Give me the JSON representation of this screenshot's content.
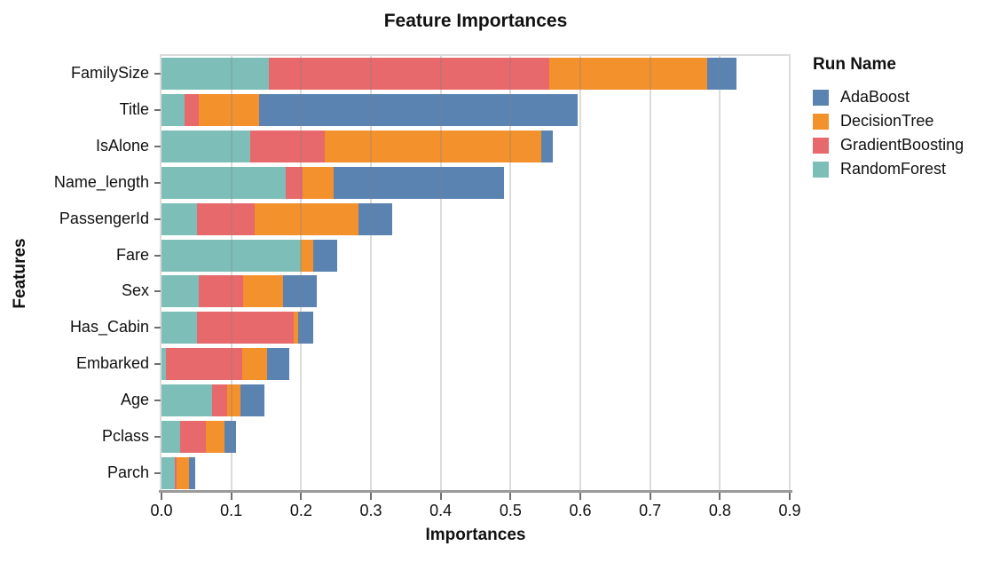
{
  "title": "Feature Importances",
  "axes": {
    "x_label": "Importances",
    "y_label": "Features",
    "x_tick_labels": [
      "0.0",
      "0.1",
      "0.2",
      "0.3",
      "0.4",
      "0.5",
      "0.6",
      "0.7",
      "0.8",
      "0.9"
    ]
  },
  "legend": {
    "title": "Run Name",
    "entries": [
      {
        "label": "AdaBoost",
        "color": "#5b83b2"
      },
      {
        "label": "DecisionTree",
        "color": "#f3912d"
      },
      {
        "label": "GradientBoosting",
        "color": "#e8696b"
      },
      {
        "label": "RandomForest",
        "color": "#7dbfb8"
      }
    ]
  },
  "colors": {
    "adaboost": "#5b83b2",
    "decision_tree": "#f3912d",
    "gradient_boosting": "#e8696b",
    "random_forest": "#7dbfb8",
    "gridline": "#dcdcdc",
    "axis_line": "#9a9a9a"
  },
  "chart_data": {
    "type": "bar",
    "orientation": "horizontal",
    "stacked": true,
    "title": "Feature Importances",
    "xlabel": "Importances",
    "ylabel": "Features",
    "xlim": [
      0,
      0.9
    ],
    "x_ticks": [
      0.0,
      0.1,
      0.2,
      0.3,
      0.4,
      0.5,
      0.6,
      0.7,
      0.8,
      0.9
    ],
    "grid": true,
    "legend_position": "right",
    "legend_title": "Run Name",
    "categories": [
      "FamilySize",
      "Title",
      "IsAlone",
      "Name_length",
      "PassengerId",
      "Fare",
      "Sex",
      "Has_Cabin",
      "Embarked",
      "Age",
      "Pclass",
      "Parch"
    ],
    "stack_order_note": "segments drawn left-to-right: RandomForest, GradientBoosting, DecisionTree, AdaBoost",
    "series": [
      {
        "name": "RandomForest",
        "color": "#7dbfb8",
        "values": [
          0.154,
          0.033,
          0.127,
          0.178,
          0.051,
          0.2,
          0.053,
          0.051,
          0.006,
          0.072,
          0.027,
          0.019
        ]
      },
      {
        "name": "GradientBoosting",
        "color": "#e8696b",
        "values": [
          0.402,
          0.021,
          0.107,
          0.024,
          0.082,
          0.0,
          0.064,
          0.138,
          0.11,
          0.022,
          0.036,
          0.003
        ]
      },
      {
        "name": "DecisionTree",
        "color": "#f3912d",
        "values": [
          0.226,
          0.086,
          0.31,
          0.044,
          0.149,
          0.017,
          0.057,
          0.007,
          0.035,
          0.019,
          0.027,
          0.017
        ]
      },
      {
        "name": "AdaBoost",
        "color": "#5b83b2",
        "values": [
          0.042,
          0.456,
          0.017,
          0.245,
          0.049,
          0.035,
          0.048,
          0.022,
          0.032,
          0.035,
          0.017,
          0.009
        ]
      }
    ],
    "totals": [
      0.824,
      0.596,
      0.561,
      0.491,
      0.331,
      0.252,
      0.222,
      0.218,
      0.183,
      0.148,
      0.107,
      0.048
    ]
  }
}
